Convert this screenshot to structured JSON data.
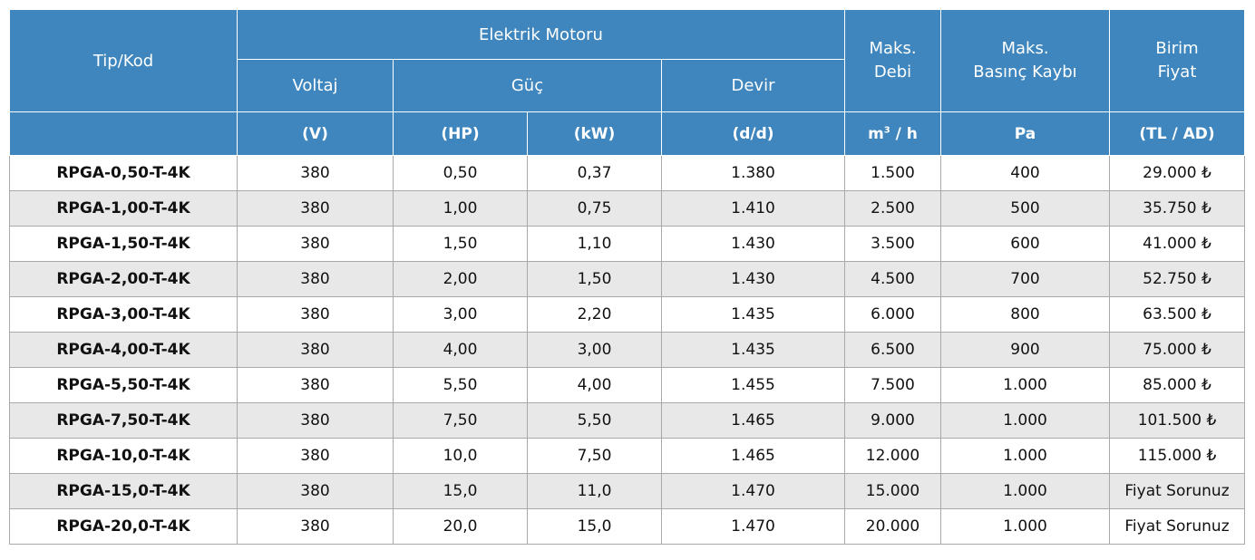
{
  "header": {
    "tip_kod": "Tip/Kod",
    "elektrik_motoru": "Elektrik Motoru",
    "voltaj": "Voltaj",
    "guc": "Güç",
    "devir": "Devir",
    "maks_debi_line1": "Maks.",
    "maks_debi_line2": "Debi",
    "maks_basinc_line1": "Maks.",
    "maks_basinc_line2": "Basınç Kaybı",
    "birim_fiyat_line1": "Birim",
    "birim_fiyat_line2": "Fiyat"
  },
  "units": {
    "voltaj": "(V)",
    "hp": "(HP)",
    "kw": "(kW)",
    "devir": "(d/d)",
    "debi_base": "m",
    "debi_sup": "3",
    "debi_rest": " / h",
    "basinc": "Pa",
    "fiyat": "(TL / AD)"
  },
  "rows": [
    {
      "code": "RPGA-0,50-T-4K",
      "v": "380",
      "hp": "0,50",
      "kw": "0,37",
      "devir": "1.380",
      "debi": "1.500",
      "basinc": "400",
      "fiyat": "29.000 ₺"
    },
    {
      "code": "RPGA-1,00-T-4K",
      "v": "380",
      "hp": "1,00",
      "kw": "0,75",
      "devir": "1.410",
      "debi": "2.500",
      "basinc": "500",
      "fiyat": "35.750 ₺"
    },
    {
      "code": "RPGA-1,50-T-4K",
      "v": "380",
      "hp": "1,50",
      "kw": "1,10",
      "devir": "1.430",
      "debi": "3.500",
      "basinc": "600",
      "fiyat": "41.000 ₺"
    },
    {
      "code": "RPGA-2,00-T-4K",
      "v": "380",
      "hp": "2,00",
      "kw": "1,50",
      "devir": "1.430",
      "debi": "4.500",
      "basinc": "700",
      "fiyat": "52.750 ₺"
    },
    {
      "code": "RPGA-3,00-T-4K",
      "v": "380",
      "hp": "3,00",
      "kw": "2,20",
      "devir": "1.435",
      "debi": "6.000",
      "basinc": "800",
      "fiyat": "63.500 ₺"
    },
    {
      "code": "RPGA-4,00-T-4K",
      "v": "380",
      "hp": "4,00",
      "kw": "3,00",
      "devir": "1.435",
      "debi": "6.500",
      "basinc": "900",
      "fiyat": "75.000 ₺"
    },
    {
      "code": "RPGA-5,50-T-4K",
      "v": "380",
      "hp": "5,50",
      "kw": "4,00",
      "devir": "1.455",
      "debi": "7.500",
      "basinc": "1.000",
      "fiyat": "85.000 ₺"
    },
    {
      "code": "RPGA-7,50-T-4K",
      "v": "380",
      "hp": "7,50",
      "kw": "5,50",
      "devir": "1.465",
      "debi": "9.000",
      "basinc": "1.000",
      "fiyat": "101.500 ₺"
    },
    {
      "code": "RPGA-10,0-T-4K",
      "v": "380",
      "hp": "10,0",
      "kw": "7,50",
      "devir": "1.465",
      "debi": "12.000",
      "basinc": "1.000",
      "fiyat": "115.000 ₺"
    },
    {
      "code": "RPGA-15,0-T-4K",
      "v": "380",
      "hp": "15,0",
      "kw": "11,0",
      "devir": "1.470",
      "debi": "15.000",
      "basinc": "1.000",
      "fiyat": "Fiyat Sorunuz"
    },
    {
      "code": "RPGA-20,0-T-4K",
      "v": "380",
      "hp": "20,0",
      "kw": "15,0",
      "devir": "1.470",
      "debi": "20.000",
      "basinc": "1.000",
      "fiyat": "Fiyat Sorunuz"
    }
  ]
}
